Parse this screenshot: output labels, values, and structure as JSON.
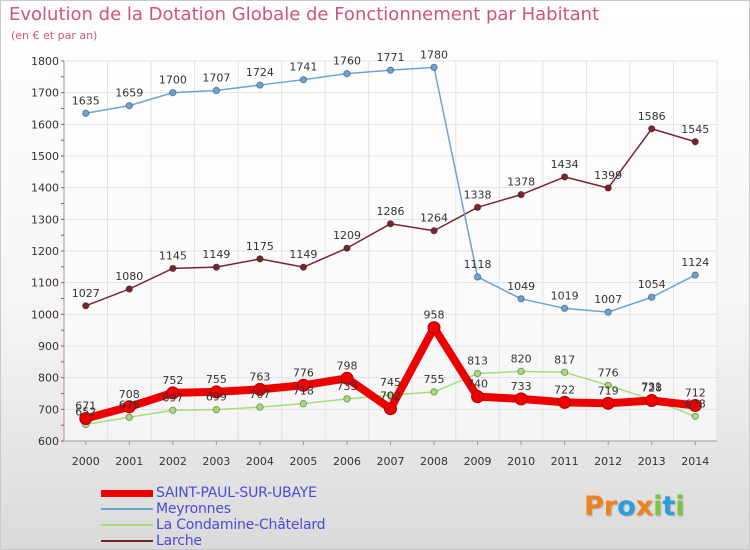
{
  "header": {
    "title": "Evolution de la Dotation Globale de Fonctionnement par Habitant",
    "subtitle": "(en € et par an)"
  },
  "logo": {
    "text": "Proxiti",
    "letters": [
      "P",
      "r",
      "o",
      "x",
      "i",
      "t",
      "i"
    ],
    "colors": [
      "#f0821e",
      "#f0821e",
      "#2a9fd8",
      "#f0821e",
      "#7cc243",
      "#2a9fd8",
      "#7cc243"
    ]
  },
  "colors": {
    "SAINT-PAUL-SUR-UBAYE": "#ee0000",
    "Meyronnes": "#6aa3d6",
    "La Condamine-Châtelard": "#a7dc7b",
    "Larche": "#7a2430",
    "grid": "#e2e2e2",
    "axis_text": "#333333",
    "value_text": "#333333"
  },
  "chart_data": {
    "type": "line",
    "title": "Evolution de la Dotation Globale de Fonctionnement par Habitant",
    "subtitle": "(en € et par an)",
    "xlabel": "",
    "ylabel": "",
    "ylim": [
      600,
      1800
    ],
    "yticks": [
      600,
      700,
      800,
      900,
      1000,
      1100,
      1200,
      1300,
      1400,
      1500,
      1600,
      1700,
      1800
    ],
    "categories": [
      "2000",
      "2001",
      "2002",
      "2003",
      "2004",
      "2005",
      "2006",
      "2007",
      "2008",
      "2009",
      "2010",
      "2011",
      "2012",
      "2013",
      "2014"
    ],
    "grid": true,
    "legend_position": "bottom-left",
    "series": [
      {
        "name": "Larche",
        "values": [
          1027,
          1080,
          1145,
          1149,
          1175,
          1149,
          1209,
          1286,
          1264,
          1338,
          1378,
          1434,
          1399,
          1586,
          1545
        ]
      },
      {
        "name": "Meyronnes",
        "values": [
          1635,
          1659,
          1700,
          1707,
          1724,
          1741,
          1760,
          1771,
          1780,
          1118,
          1049,
          1019,
          1007,
          1054,
          1124
        ]
      },
      {
        "name": "La Condamine-Châtelard",
        "values": [
          652,
          675,
          697,
          699,
          707,
          718,
          733,
          745,
          755,
          813,
          820,
          817,
          776,
          731,
          678
        ]
      },
      {
        "name": "SAINT-PAUL-SUR-UBAYE",
        "values": [
          671,
          708,
          752,
          755,
          763,
          776,
          798,
          702,
          958,
          740,
          733,
          722,
          719,
          728,
          712
        ]
      }
    ],
    "legend": [
      "SAINT-PAUL-SUR-UBAYE",
      "Meyronnes",
      "La Condamine-Châtelard",
      "Larche"
    ]
  }
}
